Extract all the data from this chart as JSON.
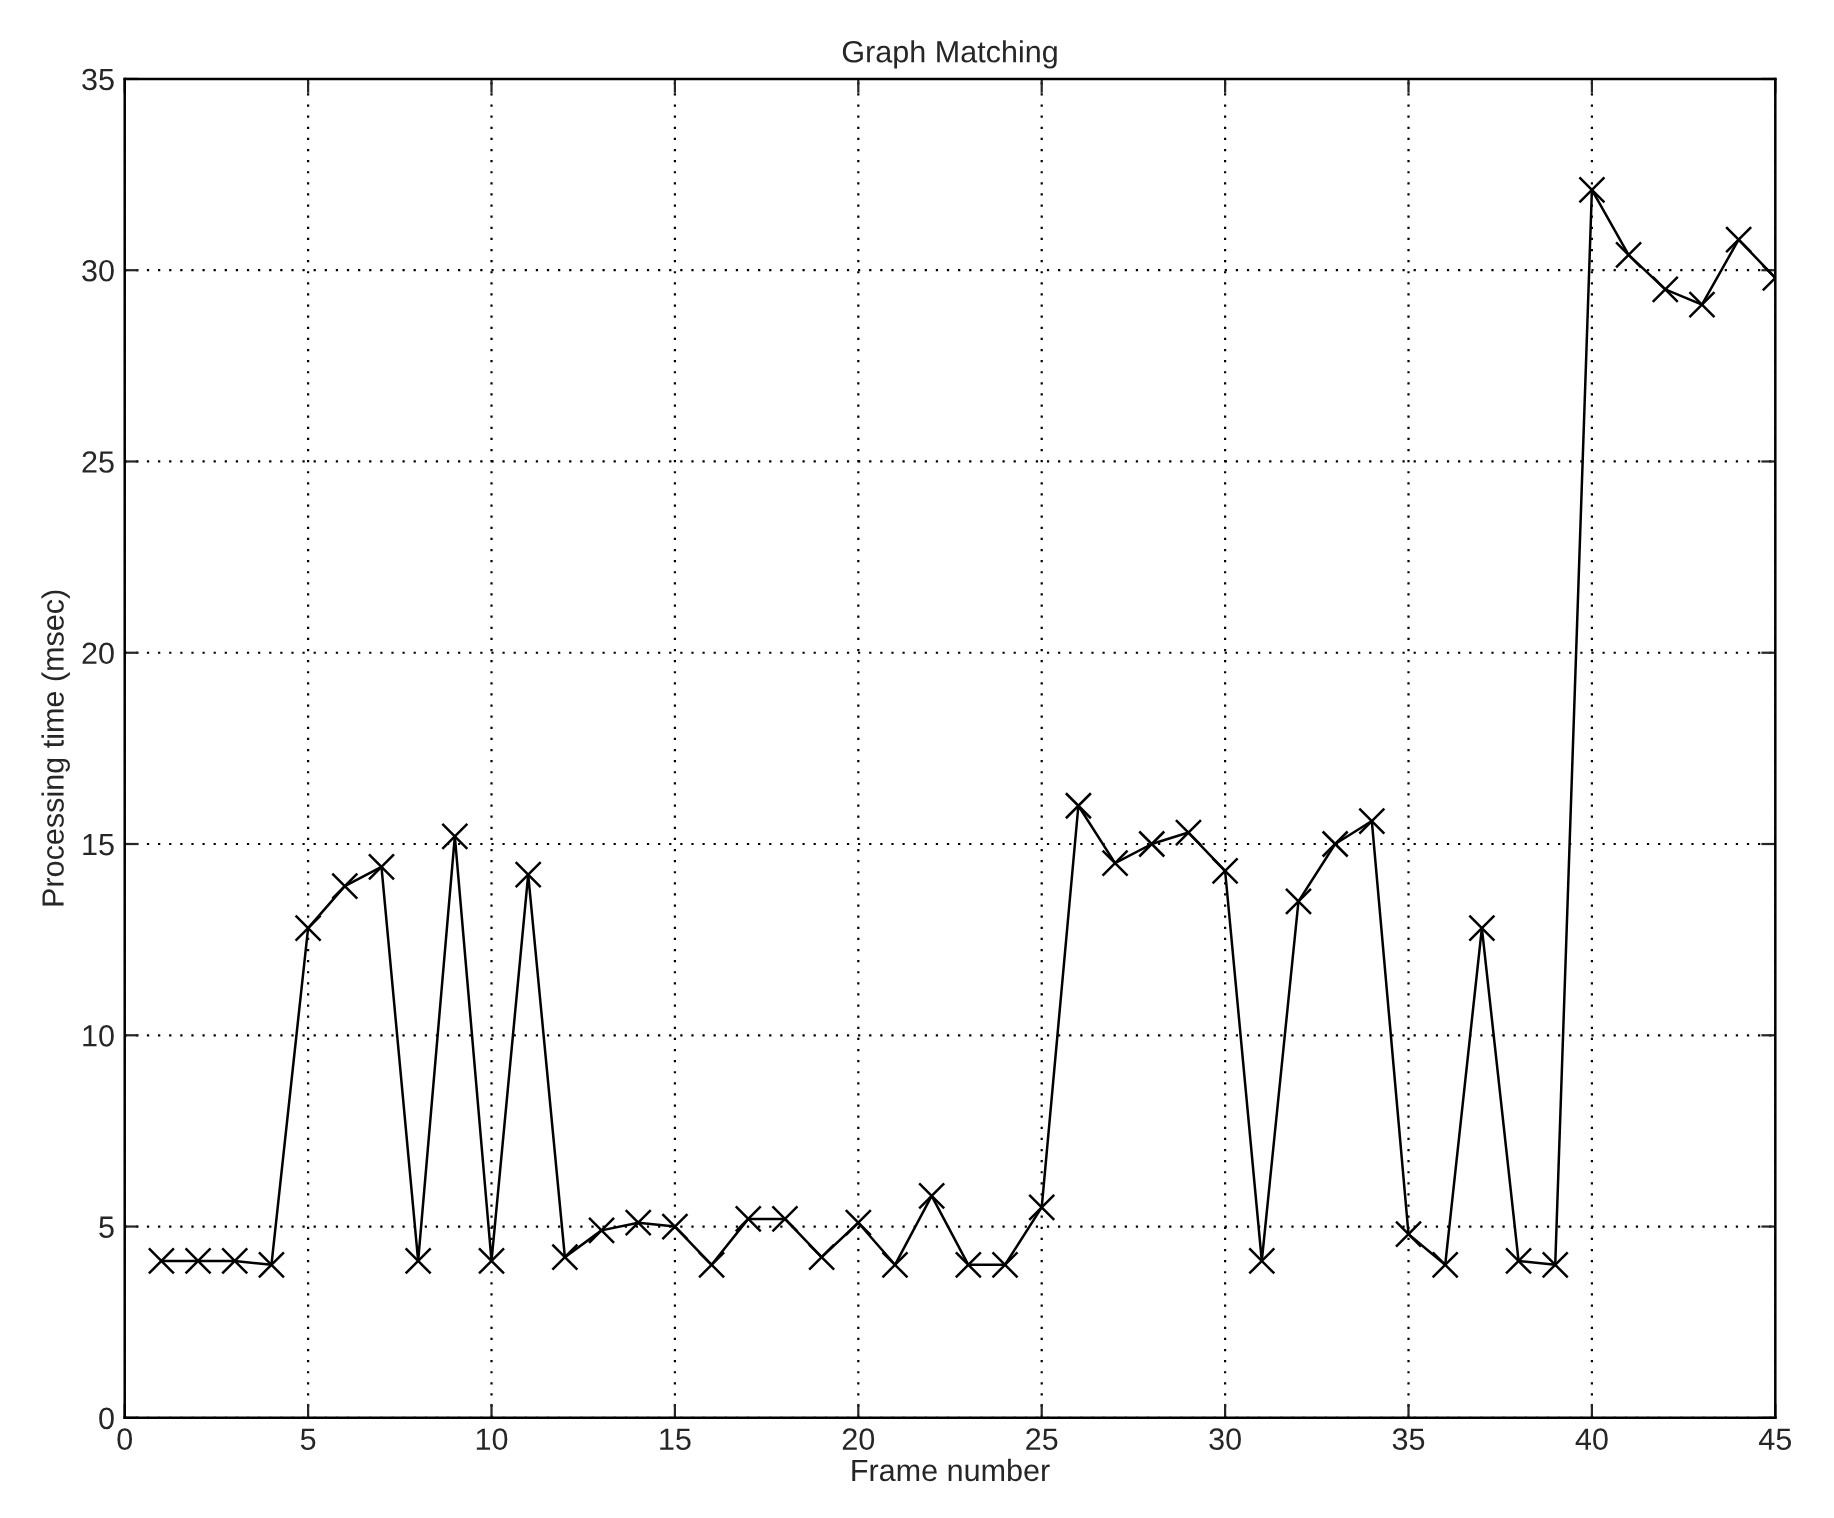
{
  "chart_data": {
    "type": "line",
    "title": "Graph Matching",
    "xlabel": "Frame number",
    "ylabel": "Processing time (msec)",
    "x": [
      1,
      2,
      3,
      4,
      5,
      6,
      7,
      8,
      9,
      10,
      11,
      12,
      13,
      14,
      15,
      16,
      17,
      18,
      19,
      20,
      21,
      22,
      23,
      24,
      25,
      26,
      27,
      28,
      29,
      30,
      31,
      32,
      33,
      34,
      35,
      36,
      37,
      38,
      39,
      40,
      41,
      42,
      43,
      44,
      45
    ],
    "series": [
      {
        "color": "#000000",
        "values": [
          4.1,
          4.1,
          4.1,
          4.0,
          12.8,
          13.9,
          14.4,
          4.1,
          15.2,
          4.1,
          14.2,
          4.2,
          4.9,
          5.1,
          5.0,
          4.0,
          5.2,
          5.2,
          4.2,
          5.1,
          4.0,
          5.8,
          4.0,
          4.0,
          5.5,
          16.0,
          14.5,
          15.0,
          15.3,
          14.3,
          4.1,
          13.5,
          15.0,
          15.6,
          4.8,
          4.0,
          12.8,
          4.1,
          4.0,
          32.1,
          30.4,
          29.5,
          29.1,
          30.8,
          29.8
        ]
      }
    ],
    "xlim": [
      0,
      45
    ],
    "xticks": [
      0,
      5,
      10,
      15,
      20,
      25,
      30,
      35,
      40,
      45
    ],
    "ylim": [
      0,
      35
    ],
    "yticks": [
      0,
      5,
      10,
      15,
      20,
      25,
      30,
      35
    ],
    "grid": true,
    "marker": "cross",
    "line_style": "solid"
  }
}
